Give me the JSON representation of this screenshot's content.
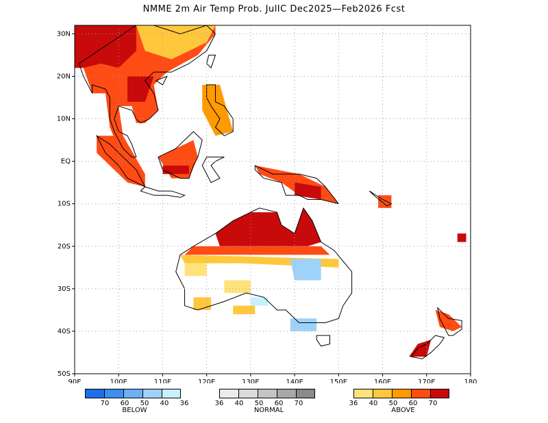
{
  "title": "NMME 2m Air Temp Prob. JulIC  Dec2025—Feb2026 Fcst",
  "axes": {
    "x_ticks": [
      "90E",
      "100E",
      "110E",
      "120E",
      "130E",
      "140E",
      "150E",
      "160E",
      "170E",
      "180"
    ],
    "y_ticks": [
      "30N",
      "20N",
      "10N",
      "EQ",
      "10S",
      "20S",
      "30S",
      "40S",
      "50S"
    ],
    "lon_range": [
      90,
      180
    ],
    "lat_range": [
      -50,
      32
    ],
    "grid": true
  },
  "legend": {
    "below": {
      "name": "BELOW",
      "colors": [
        "#1e6ee8",
        "#3c8ef0",
        "#6cb0f5",
        "#9fd2fa",
        "#c8f0fc"
      ],
      "labels": [
        "70",
        "60",
        "50",
        "40",
        "36"
      ]
    },
    "normal": {
      "name": "NORMAL",
      "colors": [
        "#ececec",
        "#dadada",
        "#c4c4c4",
        "#a8a8a8",
        "#8a8a8a"
      ],
      "labels": [
        "36",
        "40",
        "50",
        "60",
        "70"
      ]
    },
    "above": {
      "name": "ABOVE",
      "colors": [
        "#ffe27a",
        "#ffc83c",
        "#ff9a00",
        "#ff4c14",
        "#c80a0a"
      ],
      "labels": [
        "36",
        "40",
        "50",
        "60",
        "70"
      ]
    }
  }
}
